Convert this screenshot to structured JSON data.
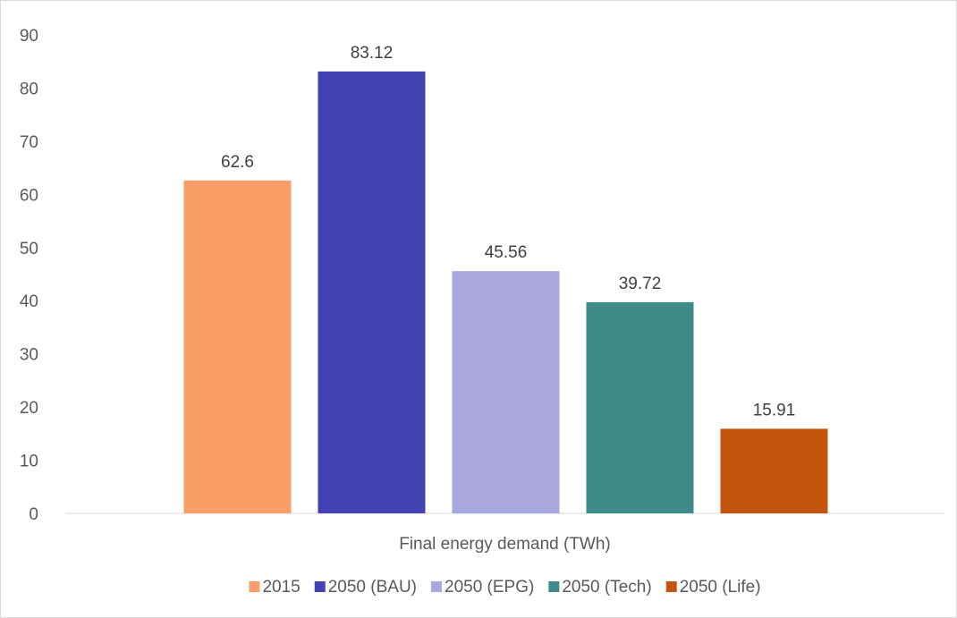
{
  "chart_data": {
    "type": "bar",
    "categories": [
      "Final energy demand (TWh)"
    ],
    "xlabel": "Final energy demand (TWh)",
    "ylabel": "",
    "title": "",
    "ylim": [
      0,
      90
    ],
    "ytick_step": 10,
    "grid": false,
    "legend_position": "bottom",
    "series": [
      {
        "name": "2015",
        "values": [
          62.6
        ],
        "label": "62.6",
        "color": "#f79e69"
      },
      {
        "name": "2050 (BAU)",
        "values": [
          83.12
        ],
        "label": "83.12",
        "color": "#4242b4"
      },
      {
        "name": "2050 (EPG)",
        "values": [
          45.56
        ],
        "label": "45.56",
        "color": "#a8a8e0"
      },
      {
        "name": "2050 (Tech)",
        "values": [
          39.72
        ],
        "label": "39.72",
        "color": "#3d8c8a"
      },
      {
        "name": "2050 (Life)",
        "values": [
          15.91
        ],
        "label": "15.91",
        "color": "#c2540c"
      }
    ]
  }
}
